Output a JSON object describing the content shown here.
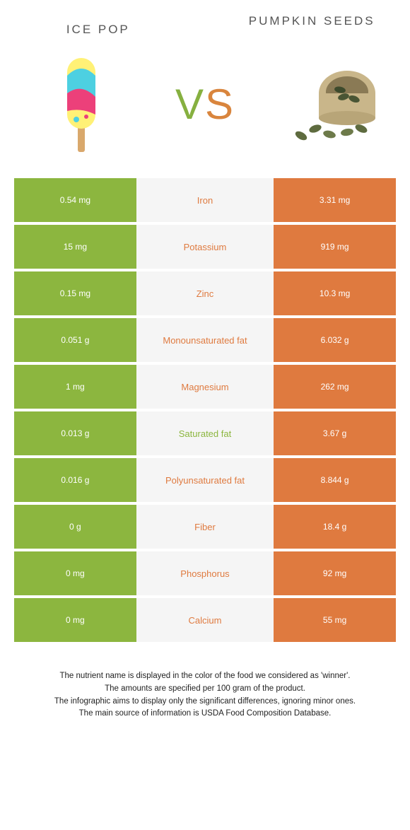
{
  "colors": {
    "left_food": "#8cb63f",
    "right_food": "#df7a3f",
    "middle_bg": "#f5f5f5"
  },
  "header": {
    "left_title": "Ice pop",
    "right_title": "Pumpkin seeds"
  },
  "vs": {
    "v": "V",
    "s": "S"
  },
  "rows": [
    {
      "left": "0.54 mg",
      "label": "Iron",
      "right": "3.31 mg",
      "winner": "right"
    },
    {
      "left": "15 mg",
      "label": "Potassium",
      "right": "919 mg",
      "winner": "right"
    },
    {
      "left": "0.15 mg",
      "label": "Zinc",
      "right": "10.3 mg",
      "winner": "right"
    },
    {
      "left": "0.051 g",
      "label": "Monounsaturated fat",
      "right": "6.032 g",
      "winner": "right"
    },
    {
      "left": "1 mg",
      "label": "Magnesium",
      "right": "262 mg",
      "winner": "right"
    },
    {
      "left": "0.013 g",
      "label": "Saturated fat",
      "right": "3.67 g",
      "winner": "left"
    },
    {
      "left": "0.016 g",
      "label": "Polyunsaturated fat",
      "right": "8.844 g",
      "winner": "right"
    },
    {
      "left": "0 g",
      "label": "Fiber",
      "right": "18.4 g",
      "winner": "right"
    },
    {
      "left": "0 mg",
      "label": "Phosphorus",
      "right": "92 mg",
      "winner": "right"
    },
    {
      "left": "0 mg",
      "label": "Calcium",
      "right": "55 mg",
      "winner": "right"
    }
  ],
  "footnotes": [
    "The nutrient name is displayed in the color of the food we considered as 'winner'.",
    "The amounts are specified per 100 gram of the product.",
    "The infographic aims to display only the significant differences, ignoring minor ones.",
    "The main source of information is USDA Food Composition Database."
  ]
}
